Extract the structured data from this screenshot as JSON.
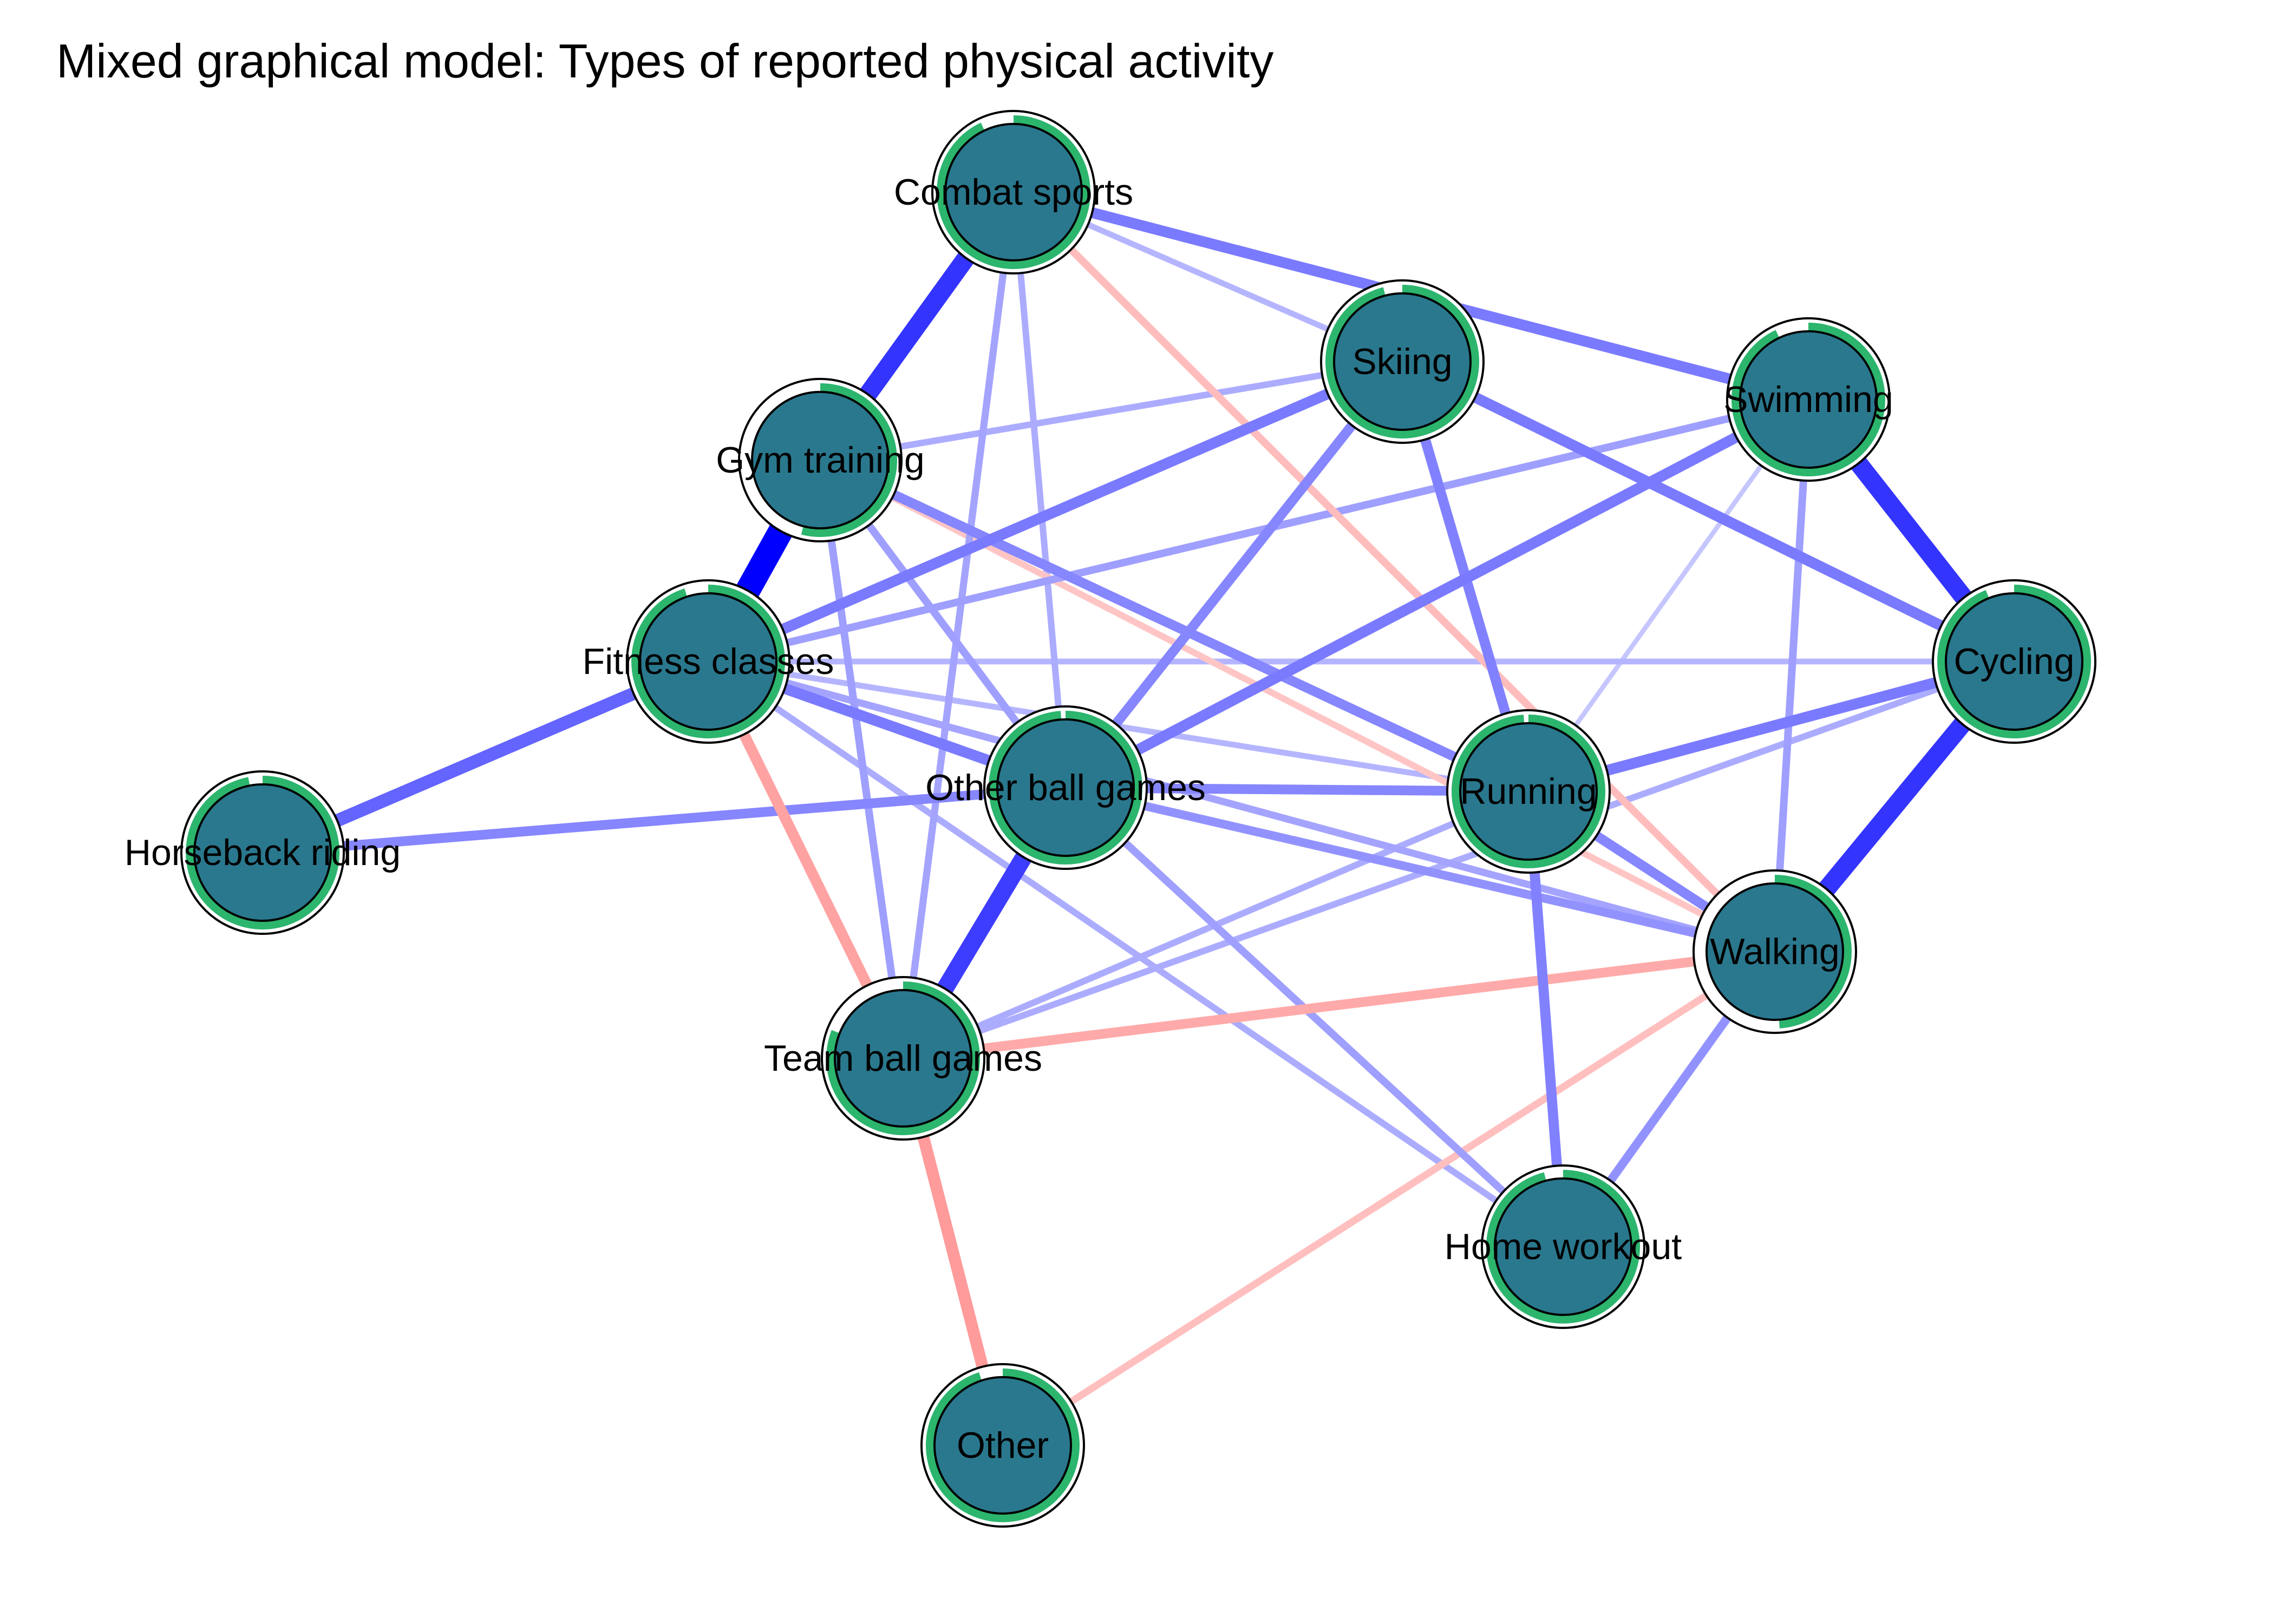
{
  "title": "Mixed graphical model: Types of reported physical activity",
  "colors": {
    "node_fill": "#2a788e",
    "pie_fill": "#2cb56d",
    "positive_edge": "#0000ff",
    "negative_edge": "#ff4d4d",
    "background": "#ffffff"
  },
  "nodes": [
    {
      "id": "combat",
      "label": "Combat sports",
      "pie": 0.93
    },
    {
      "id": "skiing",
      "label": "Skiing",
      "pie": 0.96
    },
    {
      "id": "swimming",
      "label": "Swimming",
      "pie": 0.93
    },
    {
      "id": "gym",
      "label": "Gym training",
      "pie": 0.54
    },
    {
      "id": "fitness",
      "label": "Fitness classes",
      "pie": 0.95
    },
    {
      "id": "cycling",
      "label": "Cycling",
      "pie": 0.94
    },
    {
      "id": "otherball",
      "label": "Other ball games",
      "pie": 0.99
    },
    {
      "id": "running",
      "label": "Running",
      "pie": 0.99
    },
    {
      "id": "horse",
      "label": "Horseback riding",
      "pie": 0.97
    },
    {
      "id": "walking",
      "label": "Walking",
      "pie": 0.49
    },
    {
      "id": "team",
      "label": "Team ball games",
      "pie": 0.81
    },
    {
      "id": "home",
      "label": "Home workout",
      "pie": 0.96
    },
    {
      "id": "other",
      "label": "Other",
      "pie": 0.95
    }
  ],
  "edges": [
    {
      "from": "gym",
      "to": "fitness",
      "weight": 1.0
    },
    {
      "from": "combat",
      "to": "gym",
      "weight": 0.7
    },
    {
      "from": "swimming",
      "to": "cycling",
      "weight": 0.7
    },
    {
      "from": "cycling",
      "to": "walking",
      "weight": 0.7
    },
    {
      "from": "otherball",
      "to": "team",
      "weight": 0.65
    },
    {
      "from": "fitness",
      "to": "horse",
      "weight": 0.45
    },
    {
      "from": "combat",
      "to": "swimming",
      "weight": 0.35
    },
    {
      "from": "skiing",
      "to": "fitness",
      "weight": 0.35
    },
    {
      "from": "swimming",
      "to": "otherball",
      "weight": 0.35
    },
    {
      "from": "skiing",
      "to": "cycling",
      "weight": 0.35
    },
    {
      "from": "fitness",
      "to": "otherball",
      "weight": 0.35
    },
    {
      "from": "cycling",
      "to": "running",
      "weight": 0.35
    },
    {
      "from": "horse",
      "to": "otherball",
      "weight": 0.3
    },
    {
      "from": "running",
      "to": "home",
      "weight": 0.32
    },
    {
      "from": "skiing",
      "to": "running",
      "weight": 0.32
    },
    {
      "from": "skiing",
      "to": "otherball",
      "weight": 0.3
    },
    {
      "from": "gym",
      "to": "running",
      "weight": 0.3
    },
    {
      "from": "otherball",
      "to": "running",
      "weight": 0.3
    },
    {
      "from": "walking",
      "to": "home",
      "weight": 0.25
    },
    {
      "from": "running",
      "to": "walking",
      "weight": 0.3
    },
    {
      "from": "otherball",
      "to": "walking",
      "weight": 0.25
    },
    {
      "from": "swimming",
      "to": "walking",
      "weight": 0.2
    },
    {
      "from": "gym",
      "to": "otherball",
      "weight": 0.2
    },
    {
      "from": "combat",
      "to": "team",
      "weight": 0.18
    },
    {
      "from": "gym",
      "to": "team",
      "weight": 0.2
    },
    {
      "from": "fitness",
      "to": "walking",
      "weight": 0.18
    },
    {
      "from": "swimming",
      "to": "fitness",
      "weight": 0.2
    },
    {
      "from": "otherball",
      "to": "home",
      "weight": 0.2
    },
    {
      "from": "combat",
      "to": "otherball",
      "weight": 0.15
    },
    {
      "from": "fitness",
      "to": "team",
      "weight": -0.35
    },
    {
      "from": "team",
      "to": "walking",
      "weight": -0.3
    },
    {
      "from": "team",
      "to": "other",
      "weight": -0.4
    },
    {
      "from": "walking",
      "to": "other",
      "weight": -0.18
    },
    {
      "from": "combat",
      "to": "walking",
      "weight": -0.2
    },
    {
      "from": "gym",
      "to": "walking",
      "weight": -0.15
    },
    {
      "from": "fitness",
      "to": "home",
      "weight": 0.15
    },
    {
      "from": "gym",
      "to": "skiing",
      "weight": 0.15
    },
    {
      "from": "combat",
      "to": "skiing",
      "weight": 0.12
    },
    {
      "from": "fitness",
      "to": "cycling",
      "weight": 0.12
    },
    {
      "from": "team",
      "to": "cycling",
      "weight": 0.15
    },
    {
      "from": "team",
      "to": "running",
      "weight": 0.15
    },
    {
      "from": "fitness",
      "to": "running",
      "weight": 0.12
    },
    {
      "from": "swimming",
      "to": "running",
      "weight": 0.07
    }
  ]
}
